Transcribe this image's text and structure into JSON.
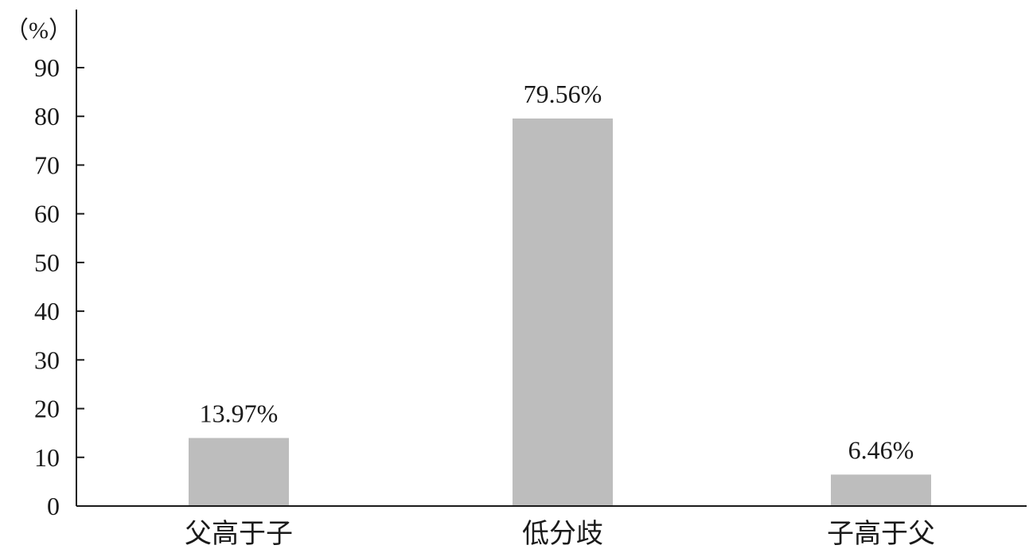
{
  "chart_data": {
    "type": "bar",
    "title": "",
    "xlabel": "",
    "ylabel": "",
    "y_unit_label": "（%）",
    "categories": [
      "父高于子",
      "低分歧",
      "子高于父"
    ],
    "values": [
      13.97,
      79.56,
      6.46
    ],
    "data_labels": [
      "13.97%",
      "79.56%",
      "6.46%"
    ],
    "ylim": [
      0,
      90
    ],
    "yticks": [
      0,
      10,
      20,
      30,
      40,
      50,
      60,
      70,
      80,
      90
    ],
    "ytick_labels": [
      "0",
      "10",
      "20",
      "30",
      "40",
      "50",
      "60",
      "70",
      "80",
      "90"
    ],
    "bar_color": "#bdbdbd",
    "axis_color": "#1a1a1a",
    "grid": false,
    "legend": "none"
  }
}
